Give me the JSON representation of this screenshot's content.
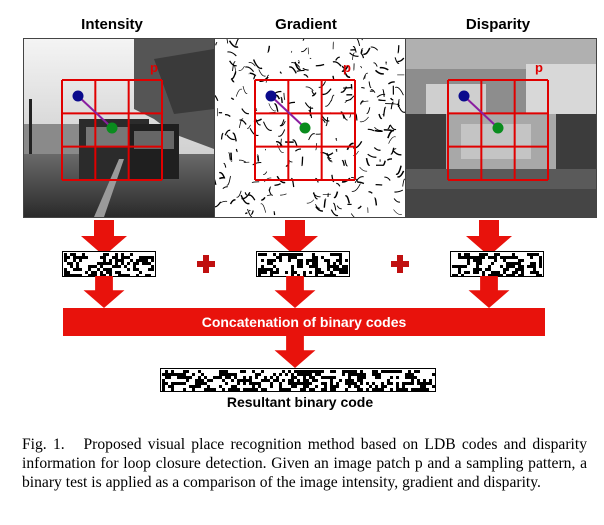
{
  "figure": {
    "panels": [
      {
        "title": "Intensity",
        "patch_label": "p"
      },
      {
        "title": "Gradient",
        "patch_label": "p"
      },
      {
        "title": "Disparity",
        "patch_label": "p"
      }
    ],
    "concat_label": "Concatenation of binary codes",
    "result_label": "Resultant binary code",
    "colors": {
      "accent_red": "#e8120c",
      "grid_red": "#e00000",
      "dot_blue": "#0a0a8c",
      "dot_green": "#0a8c1e",
      "arrow_purple": "#8a1ea0"
    }
  },
  "caption": {
    "label": "Fig. 1.",
    "text": "Proposed visual place recognition method based on LDB codes and disparity information for loop closure detection. Given an image patch p and a sampling pattern, a binary test is applied as a comparison of the image intensity, gradient and disparity."
  }
}
